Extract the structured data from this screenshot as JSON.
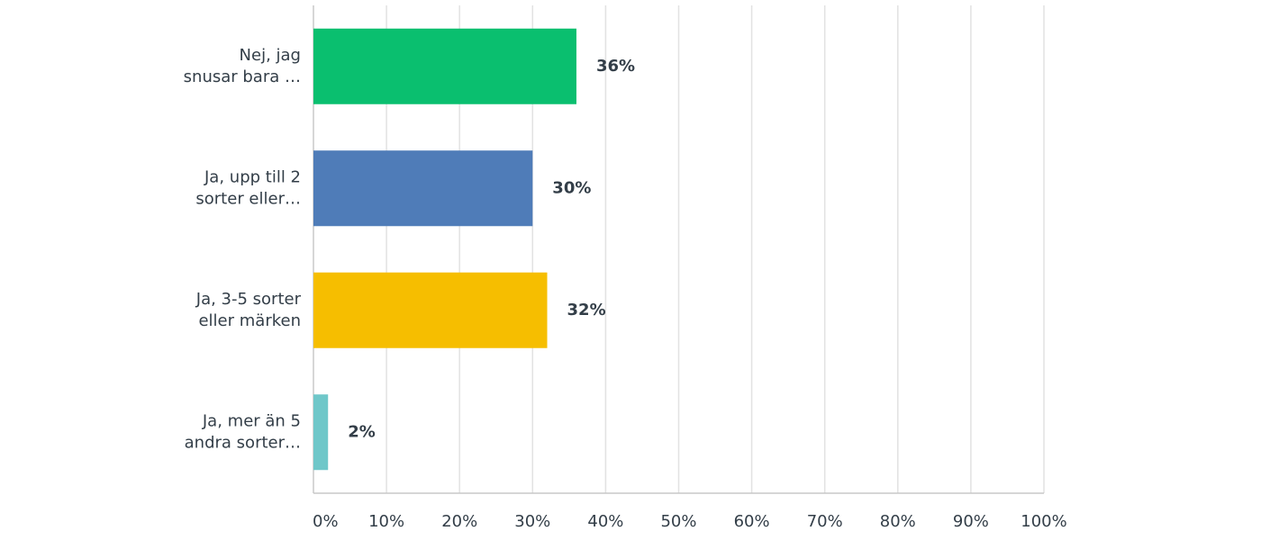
{
  "chart_data": {
    "type": "hbar",
    "categories": [
      "Nej, jag\nsnusar bara …",
      "Ja, upp till 2\nsorter eller…",
      "Ja, 3-5 sorter\neller märken",
      "Ja, mer än 5\nandra sorter…"
    ],
    "values": [
      36,
      30,
      32,
      2
    ],
    "value_labels": [
      "36%",
      "30%",
      "32%",
      "2%"
    ],
    "colors": [
      "#0abf6f",
      "#4f7cb8",
      "#f6be00",
      "#6fc7c9"
    ],
    "xlim": [
      0,
      100
    ],
    "xticks": [
      {
        "value": 0,
        "label": "0%"
      },
      {
        "value": 10,
        "label": "10%"
      },
      {
        "value": 20,
        "label": "20%"
      },
      {
        "value": 30,
        "label": "30%"
      },
      {
        "value": 40,
        "label": "40%"
      },
      {
        "value": 50,
        "label": "50%"
      },
      {
        "value": 60,
        "label": "60%"
      },
      {
        "value": 70,
        "label": "70%"
      },
      {
        "value": 80,
        "label": "80%"
      },
      {
        "value": 90,
        "label": "90%"
      },
      {
        "value": 100,
        "label": "100%"
      }
    ],
    "grid": true
  }
}
